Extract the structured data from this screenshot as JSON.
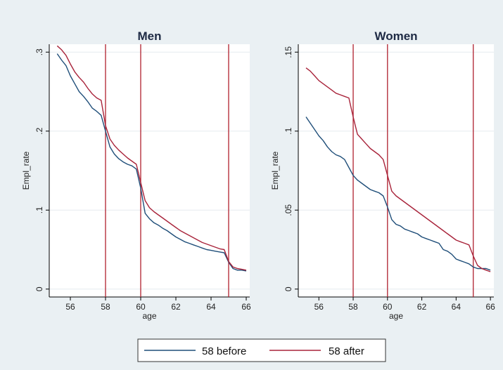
{
  "colors": {
    "outer_background": "#eaf0f3",
    "plot_background": "#ffffff",
    "gridline": "#e6ecef",
    "series_before": "#1f4e79",
    "series_after": "#a8233a",
    "reference_line": "#b0202e"
  },
  "legend": {
    "items": [
      {
        "label": "58 before",
        "color": "#1f4e79"
      },
      {
        "label": "58 after",
        "color": "#a8233a"
      }
    ]
  },
  "chart_data": [
    {
      "type": "line",
      "title": "Men",
      "xlabel": "age",
      "ylabel": "Empl_rate",
      "xlim": [
        54.8,
        66.2
      ],
      "ylim": [
        -0.01,
        0.31
      ],
      "xticks": [
        56,
        58,
        60,
        62,
        64,
        66
      ],
      "yticks": [
        0,
        0.1,
        0.2,
        0.3
      ],
      "ytick_labels": [
        "0",
        ".1",
        ".2",
        ".3"
      ],
      "grid": true,
      "reference_lines_x": [
        58,
        60,
        65
      ],
      "x": [
        55.25,
        55.5,
        55.75,
        56,
        56.25,
        56.5,
        56.75,
        57,
        57.25,
        57.5,
        57.75,
        58,
        58.25,
        58.5,
        58.75,
        59,
        59.25,
        59.5,
        59.75,
        60,
        60.25,
        60.5,
        60.75,
        61,
        61.25,
        61.5,
        61.75,
        62,
        62.25,
        62.5,
        62.75,
        63,
        63.25,
        63.5,
        63.75,
        64,
        64.25,
        64.5,
        64.75,
        65,
        65.25,
        65.5,
        65.75,
        66
      ],
      "series": [
        {
          "name": "58 before",
          "values": [
            0.298,
            0.29,
            0.283,
            0.27,
            0.26,
            0.25,
            0.244,
            0.237,
            0.229,
            0.225,
            0.22,
            0.2,
            0.18,
            0.171,
            0.165,
            0.161,
            0.158,
            0.156,
            0.152,
            0.128,
            0.096,
            0.089,
            0.084,
            0.081,
            0.077,
            0.074,
            0.07,
            0.066,
            0.063,
            0.06,
            0.058,
            0.056,
            0.054,
            0.052,
            0.05,
            0.049,
            0.048,
            0.047,
            0.046,
            0.034,
            0.026,
            0.024,
            0.024,
            0.023
          ]
        },
        {
          "name": "58 after",
          "values": [
            0.308,
            0.303,
            0.296,
            0.285,
            0.275,
            0.268,
            0.262,
            0.254,
            0.247,
            0.242,
            0.239,
            0.207,
            0.19,
            0.182,
            0.176,
            0.171,
            0.166,
            0.162,
            0.158,
            0.135,
            0.112,
            0.103,
            0.098,
            0.094,
            0.09,
            0.086,
            0.082,
            0.078,
            0.074,
            0.071,
            0.068,
            0.065,
            0.062,
            0.059,
            0.057,
            0.055,
            0.053,
            0.051,
            0.05,
            0.035,
            0.028,
            0.026,
            0.025,
            0.024
          ]
        }
      ]
    },
    {
      "type": "line",
      "title": "Women",
      "xlabel": "age",
      "ylabel": "Empl_rate",
      "xlim": [
        54.8,
        66.2
      ],
      "ylim": [
        -0.005,
        0.155
      ],
      "xticks": [
        56,
        58,
        60,
        62,
        64,
        66
      ],
      "yticks": [
        0,
        0.05,
        0.1,
        0.15
      ],
      "ytick_labels": [
        "0",
        ".05",
        ".1",
        ".15"
      ],
      "grid": true,
      "reference_lines_x": [
        58,
        60,
        65
      ],
      "x": [
        55.25,
        55.5,
        55.75,
        56,
        56.25,
        56.5,
        56.75,
        57,
        57.25,
        57.5,
        57.75,
        58,
        58.25,
        58.5,
        58.75,
        59,
        59.25,
        59.5,
        59.75,
        60,
        60.25,
        60.5,
        60.75,
        61,
        61.25,
        61.5,
        61.75,
        62,
        62.25,
        62.5,
        62.75,
        63,
        63.25,
        63.5,
        63.75,
        64,
        64.25,
        64.5,
        64.75,
        65,
        65.25,
        65.5,
        65.75,
        66
      ],
      "series": [
        {
          "name": "58 before",
          "values": [
            0.109,
            0.105,
            0.101,
            0.097,
            0.094,
            0.09,
            0.087,
            0.085,
            0.084,
            0.082,
            0.077,
            0.072,
            0.069,
            0.067,
            0.065,
            0.063,
            0.062,
            0.061,
            0.059,
            0.052,
            0.044,
            0.041,
            0.04,
            0.038,
            0.037,
            0.036,
            0.035,
            0.033,
            0.032,
            0.031,
            0.03,
            0.029,
            0.025,
            0.024,
            0.022,
            0.019,
            0.018,
            0.017,
            0.016,
            0.014,
            0.013,
            0.013,
            0.013,
            0.012
          ]
        },
        {
          "name": "58 after",
          "values": [
            0.14,
            0.138,
            0.135,
            0.132,
            0.13,
            0.128,
            0.126,
            0.124,
            0.123,
            0.122,
            0.121,
            0.109,
            0.098,
            0.095,
            0.092,
            0.089,
            0.087,
            0.085,
            0.082,
            0.072,
            0.062,
            0.059,
            0.057,
            0.055,
            0.053,
            0.051,
            0.049,
            0.047,
            0.045,
            0.043,
            0.041,
            0.039,
            0.037,
            0.035,
            0.033,
            0.031,
            0.03,
            0.029,
            0.028,
            0.021,
            0.015,
            0.013,
            0.012,
            0.011
          ]
        }
      ]
    }
  ]
}
